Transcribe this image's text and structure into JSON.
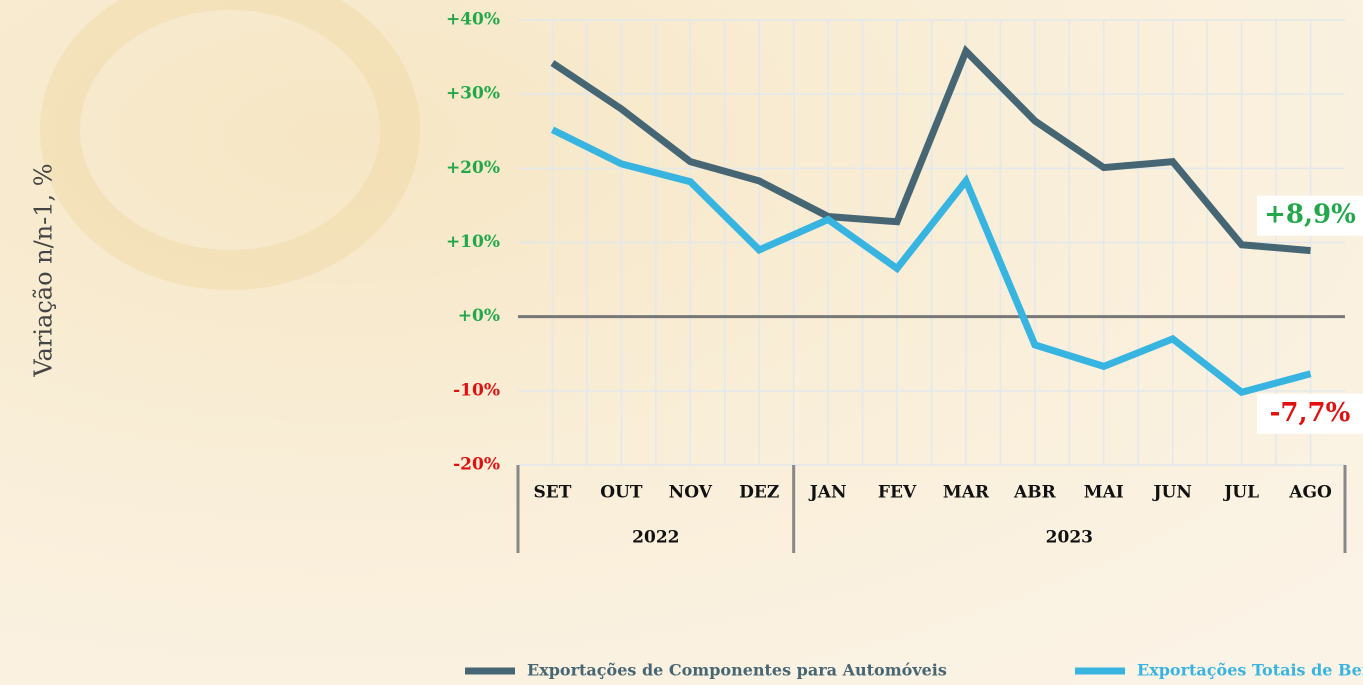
{
  "chart_data": {
    "type": "line",
    "y_axis_label": "Variação n/n-1, %",
    "categories": [
      "SET",
      "OUT",
      "NOV",
      "DEZ",
      "JAN",
      "FEV",
      "MAR",
      "ABR",
      "MAI",
      "JUN",
      "JUL",
      "AGO"
    ],
    "x_groups": [
      {
        "label": "2022",
        "from": "SET",
        "to": "DEZ"
      },
      {
        "label": "2023",
        "from": "JAN",
        "to": "AGO"
      }
    ],
    "series": [
      {
        "name": "Exportações de Componentes para Automóveis",
        "color": "#476673",
        "values": [
          34.2,
          28.0,
          20.9,
          18.3,
          13.5,
          12.8,
          35.8,
          26.4,
          20.1,
          20.9,
          9.7,
          8.9
        ],
        "end_label": "+8,9%",
        "end_label_color": "#22a84a"
      },
      {
        "name": "Exportações Totais de Bens",
        "color": "#38b4e0",
        "values": [
          25.2,
          20.6,
          18.2,
          9.0,
          13.1,
          6.5,
          18.3,
          -3.8,
          -6.7,
          -3.0,
          -10.2,
          -7.7
        ],
        "end_label": "-7,7%",
        "end_label_color": "#e01010"
      }
    ],
    "ylim": [
      -20,
      40
    ],
    "yticks": [
      {
        "value": 40,
        "label": "+40%"
      },
      {
        "value": 30,
        "label": "+30%"
      },
      {
        "value": 20,
        "label": "+20%"
      },
      {
        "value": 10,
        "label": "+10%"
      },
      {
        "value": 0,
        "label": "+0%"
      },
      {
        "value": -10,
        "label": "-10%"
      },
      {
        "value": -20,
        "label": "-20%"
      }
    ],
    "tick_colors": {
      "positive": "#22a84a",
      "negative": "#e01010"
    },
    "grid": true,
    "legend": "bottom"
  }
}
